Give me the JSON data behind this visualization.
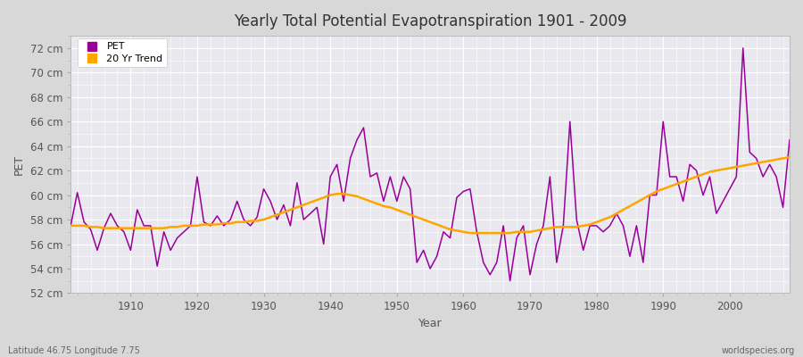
{
  "title": "Yearly Total Potential Evapotranspiration 1901 - 2009",
  "xlabel": "Year",
  "ylabel": "PET",
  "footnote_left": "Latitude 46.75 Longitude 7.75",
  "footnote_right": "worldspecies.org",
  "pet_color": "#990099",
  "trend_color": "#FFA500",
  "fig_bg_color": "#D8D8D8",
  "plot_bg_color": "#E8E8EE",
  "ylim": [
    52,
    73
  ],
  "yticks": [
    52,
    54,
    56,
    58,
    60,
    62,
    64,
    66,
    68,
    70,
    72
  ],
  "xlim": [
    1901,
    2009
  ],
  "years": [
    1901,
    1902,
    1903,
    1904,
    1905,
    1906,
    1907,
    1908,
    1909,
    1910,
    1911,
    1912,
    1913,
    1914,
    1915,
    1916,
    1917,
    1918,
    1919,
    1920,
    1921,
    1922,
    1923,
    1924,
    1925,
    1926,
    1927,
    1928,
    1929,
    1930,
    1931,
    1932,
    1933,
    1934,
    1935,
    1936,
    1937,
    1938,
    1939,
    1940,
    1941,
    1942,
    1943,
    1944,
    1945,
    1946,
    1947,
    1948,
    1949,
    1950,
    1951,
    1952,
    1953,
    1954,
    1955,
    1956,
    1957,
    1958,
    1959,
    1960,
    1961,
    1962,
    1963,
    1964,
    1965,
    1966,
    1967,
    1968,
    1969,
    1970,
    1971,
    1972,
    1973,
    1974,
    1975,
    1976,
    1977,
    1978,
    1979,
    1980,
    1981,
    1982,
    1983,
    1984,
    1985,
    1986,
    1987,
    1988,
    1989,
    1990,
    1991,
    1992,
    1993,
    1994,
    1995,
    1996,
    1997,
    1998,
    1999,
    2000,
    2001,
    2002,
    2003,
    2004,
    2005,
    2006,
    2007,
    2008,
    2009
  ],
  "pet_values": [
    57.5,
    60.2,
    57.8,
    57.2,
    55.5,
    57.3,
    58.5,
    57.5,
    57.0,
    55.5,
    58.8,
    57.5,
    57.5,
    54.2,
    57.0,
    55.5,
    56.5,
    57.0,
    57.5,
    61.5,
    57.8,
    57.5,
    58.3,
    57.5,
    58.0,
    59.5,
    58.0,
    57.5,
    58.2,
    60.5,
    59.5,
    58.0,
    59.2,
    57.5,
    61.0,
    58.0,
    58.5,
    59.0,
    56.0,
    61.5,
    62.5,
    59.5,
    63.0,
    64.5,
    65.5,
    61.5,
    61.8,
    59.5,
    61.5,
    59.5,
    61.5,
    60.5,
    54.5,
    55.5,
    54.0,
    55.0,
    57.0,
    56.5,
    59.8,
    60.3,
    60.5,
    57.0,
    54.5,
    53.5,
    54.5,
    57.5,
    53.0,
    56.5,
    57.5,
    53.5,
    56.0,
    57.5,
    61.5,
    54.5,
    57.5,
    66.0,
    58.0,
    55.5,
    57.5,
    57.5,
    57.0,
    57.5,
    58.5,
    57.5,
    55.0,
    57.5,
    54.5,
    60.0,
    60.0,
    66.0,
    61.5,
    61.5,
    59.5,
    62.5,
    62.0,
    60.0,
    61.5,
    58.5,
    59.5,
    60.5,
    61.5,
    72.0,
    63.5,
    63.0,
    61.5,
    62.5,
    61.5,
    59.0,
    64.5
  ],
  "trend_values": [
    57.5,
    57.5,
    57.5,
    57.4,
    57.4,
    57.3,
    57.3,
    57.3,
    57.3,
    57.3,
    57.3,
    57.3,
    57.3,
    57.3,
    57.3,
    57.4,
    57.4,
    57.5,
    57.5,
    57.5,
    57.6,
    57.6,
    57.6,
    57.7,
    57.7,
    57.8,
    57.8,
    57.9,
    57.9,
    58.0,
    58.2,
    58.4,
    58.6,
    58.8,
    59.0,
    59.2,
    59.4,
    59.6,
    59.8,
    60.0,
    60.1,
    60.1,
    60.0,
    59.9,
    59.7,
    59.5,
    59.3,
    59.1,
    59.0,
    58.8,
    58.6,
    58.4,
    58.2,
    58.0,
    57.8,
    57.6,
    57.4,
    57.2,
    57.1,
    57.0,
    56.9,
    56.9,
    56.9,
    56.9,
    56.9,
    56.9,
    56.9,
    57.0,
    57.0,
    57.0,
    57.1,
    57.2,
    57.3,
    57.4,
    57.4,
    57.4,
    57.4,
    57.5,
    57.6,
    57.8,
    58.0,
    58.2,
    58.5,
    58.8,
    59.1,
    59.4,
    59.7,
    60.0,
    60.3,
    60.5,
    60.7,
    60.9,
    61.1,
    61.3,
    61.5,
    61.7,
    61.9,
    62.0,
    62.1,
    62.2,
    62.3,
    62.4,
    62.5,
    62.6,
    62.7,
    62.8,
    62.9,
    63.0,
    63.1
  ]
}
